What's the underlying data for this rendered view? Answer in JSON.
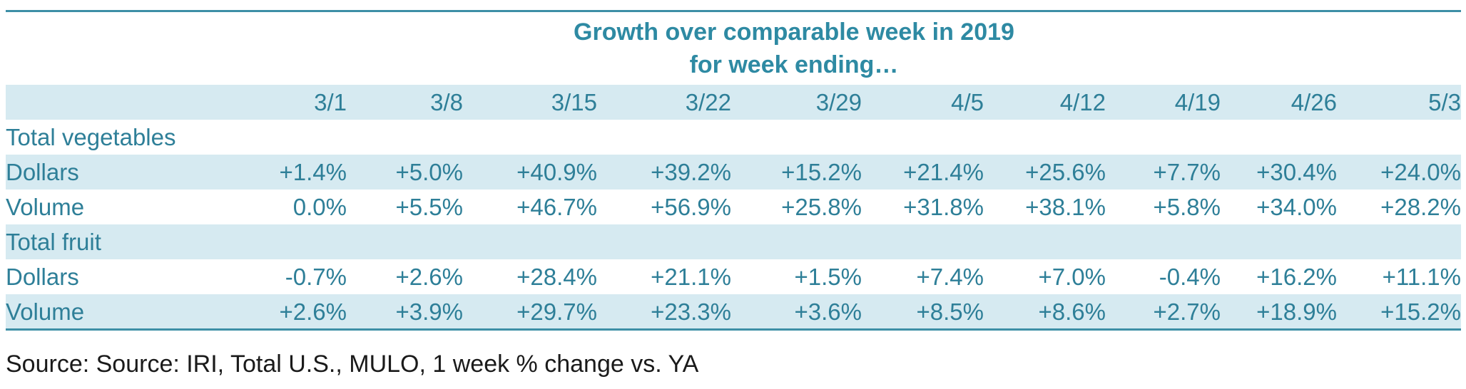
{
  "title_line1": "Growth over comparable week in 2019",
  "title_line2": "for week ending…",
  "dates": [
    "3/1",
    "3/8",
    "3/15",
    "3/22",
    "3/29",
    "4/5",
    "4/12",
    "4/19",
    "4/26",
    "5/3"
  ],
  "groups": [
    {
      "label": "Total vegetables",
      "rows": [
        {
          "label": "Dollars",
          "values": [
            "+1.4%",
            "+5.0%",
            "+40.9%",
            "+39.2%",
            "+15.2%",
            "+21.4%",
            "+25.6%",
            "+7.7%",
            "+30.4%",
            "+24.0%"
          ]
        },
        {
          "label": "Volume",
          "values": [
            "0.0%",
            "+5.5%",
            "+46.7%",
            "+56.9%",
            "+25.8%",
            "+31.8%",
            "+38.1%",
            "+5.8%",
            "+34.0%",
            "+28.2%"
          ]
        }
      ]
    },
    {
      "label": "Total fruit",
      "rows": [
        {
          "label": "Dollars",
          "values": [
            "-0.7%",
            "+2.6%",
            "+28.4%",
            "+21.1%",
            "+1.5%",
            "+7.4%",
            "+7.0%",
            "-0.4%",
            "+16.2%",
            "+11.1%"
          ]
        },
        {
          "label": "Volume",
          "values": [
            "+2.6%",
            "+3.9%",
            "+29.7%",
            "+23.3%",
            "+3.6%",
            "+8.5%",
            "+8.6%",
            "+2.7%",
            "+18.9%",
            "+15.2%"
          ]
        }
      ]
    }
  ],
  "source": "Source: Source: IRI, Total U.S., MULO, 1 week % change vs. YA",
  "colors": {
    "accent": "#2e8aa3",
    "band": "#d6eaf1",
    "rule": "#3d8fa6"
  }
}
